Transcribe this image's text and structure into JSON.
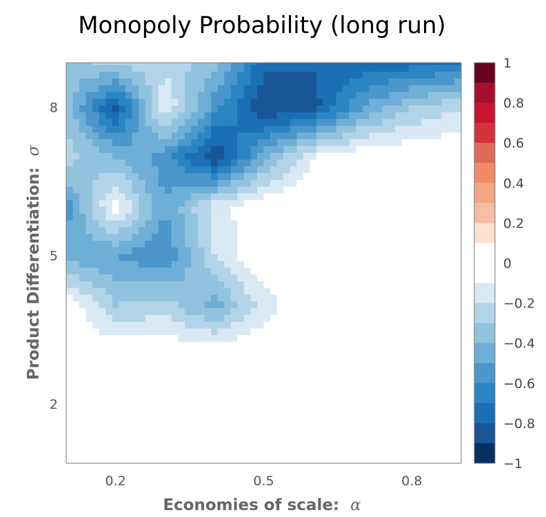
{
  "chart_data": {
    "type": "heatmap",
    "title": "Monopoly Probability (long run)",
    "xlabel": "Economies of scale:",
    "xlabel_symbol": "α",
    "ylabel": "Product Differentiation:",
    "ylabel_symbol": "σ",
    "x": [
      0.1,
      0.2,
      0.3,
      0.4,
      0.5,
      0.6,
      0.7,
      0.8,
      0.9
    ],
    "y": [
      1,
      2,
      3,
      4,
      5,
      6,
      7,
      8,
      9
    ],
    "xlim": [
      0.1,
      0.9
    ],
    "ylim": [
      0.8,
      8.9
    ],
    "x_ticks": [
      {
        "value": 0.2,
        "label": "0.2"
      },
      {
        "value": 0.5,
        "label": "0.5"
      },
      {
        "value": 0.8,
        "label": "0.8"
      }
    ],
    "y_ticks": [
      {
        "value": 2,
        "label": "2"
      },
      {
        "value": 5,
        "label": "5"
      },
      {
        "value": 8,
        "label": "8"
      }
    ],
    "z_rows_from_top_y9_to_bottom_y1": [
      [
        -0.35,
        -0.2,
        -0.25,
        -0.35,
        -0.75,
        -0.78,
        -0.8,
        -0.8,
        -0.75
      ],
      [
        -0.35,
        -0.85,
        -0.1,
        -0.55,
        -0.9,
        -0.85,
        -0.5,
        -0.3,
        -0.2
      ],
      [
        -0.25,
        -0.4,
        -0.55,
        -0.9,
        -0.45,
        -0.1,
        0,
        0,
        0
      ],
      [
        -0.55,
        -0.05,
        -0.5,
        -0.15,
        0,
        0,
        0,
        0,
        0
      ],
      [
        -0.45,
        -0.5,
        -0.6,
        -0.2,
        0,
        0,
        0,
        0,
        0
      ],
      [
        0,
        -0.3,
        -0.25,
        -0.45,
        -0.15,
        0,
        0,
        0,
        0
      ],
      [
        0,
        0,
        0,
        0,
        0,
        0,
        0,
        0,
        0
      ],
      [
        0,
        0,
        0,
        0,
        0,
        0,
        0,
        0,
        0
      ],
      [
        0,
        0,
        0,
        0,
        0,
        0,
        0,
        0,
        0
      ]
    ],
    "colorbar": {
      "range": [
        -1,
        1
      ],
      "ticks": [
        {
          "value": 1,
          "label": "1"
        },
        {
          "value": 0.8,
          "label": "0.8"
        },
        {
          "value": 0.6,
          "label": "0.6"
        },
        {
          "value": 0.4,
          "label": "0.4"
        },
        {
          "value": 0.2,
          "label": "0.2"
        },
        {
          "value": 0,
          "label": "0"
        },
        {
          "value": -0.2,
          "label": "−0.2"
        },
        {
          "value": -0.4,
          "label": "−0.4"
        },
        {
          "value": -0.6,
          "label": "−0.6"
        },
        {
          "value": -0.8,
          "label": "−0.8"
        },
        {
          "value": -1,
          "label": "−1"
        }
      ],
      "levels": [
        {
          "from": 0.9,
          "to": 1.0,
          "color": "#67001f"
        },
        {
          "from": 0.8,
          "to": 0.9,
          "color": "#a50f2d"
        },
        {
          "from": 0.7,
          "to": 0.8,
          "color": "#c81430"
        },
        {
          "from": 0.6,
          "to": 0.7,
          "color": "#d6303c"
        },
        {
          "from": 0.5,
          "to": 0.6,
          "color": "#e06a5a"
        },
        {
          "from": 0.4,
          "to": 0.5,
          "color": "#f08a68"
        },
        {
          "from": 0.3,
          "to": 0.4,
          "color": "#f4a582"
        },
        {
          "from": 0.2,
          "to": 0.3,
          "color": "#f6bea6"
        },
        {
          "from": 0.1,
          "to": 0.2,
          "color": "#fde0d0"
        },
        {
          "from": -0.1,
          "to": 0.1,
          "color": "#ffffff"
        },
        {
          "from": -0.2,
          "to": -0.1,
          "color": "#d8e9f3"
        },
        {
          "from": -0.3,
          "to": -0.2,
          "color": "#b3d4e8"
        },
        {
          "from": -0.4,
          "to": -0.3,
          "color": "#92c3de"
        },
        {
          "from": -0.5,
          "to": -0.4,
          "color": "#6faed6"
        },
        {
          "from": -0.6,
          "to": -0.5,
          "color": "#4b96cb"
        },
        {
          "from": -0.7,
          "to": -0.6,
          "color": "#2b85c3"
        },
        {
          "from": -0.8,
          "to": -0.7,
          "color": "#1b6fb5"
        },
        {
          "from": -0.9,
          "to": -0.8,
          "color": "#1a5597"
        },
        {
          "from": -1.0,
          "to": -0.9,
          "color": "#053061"
        }
      ]
    }
  }
}
